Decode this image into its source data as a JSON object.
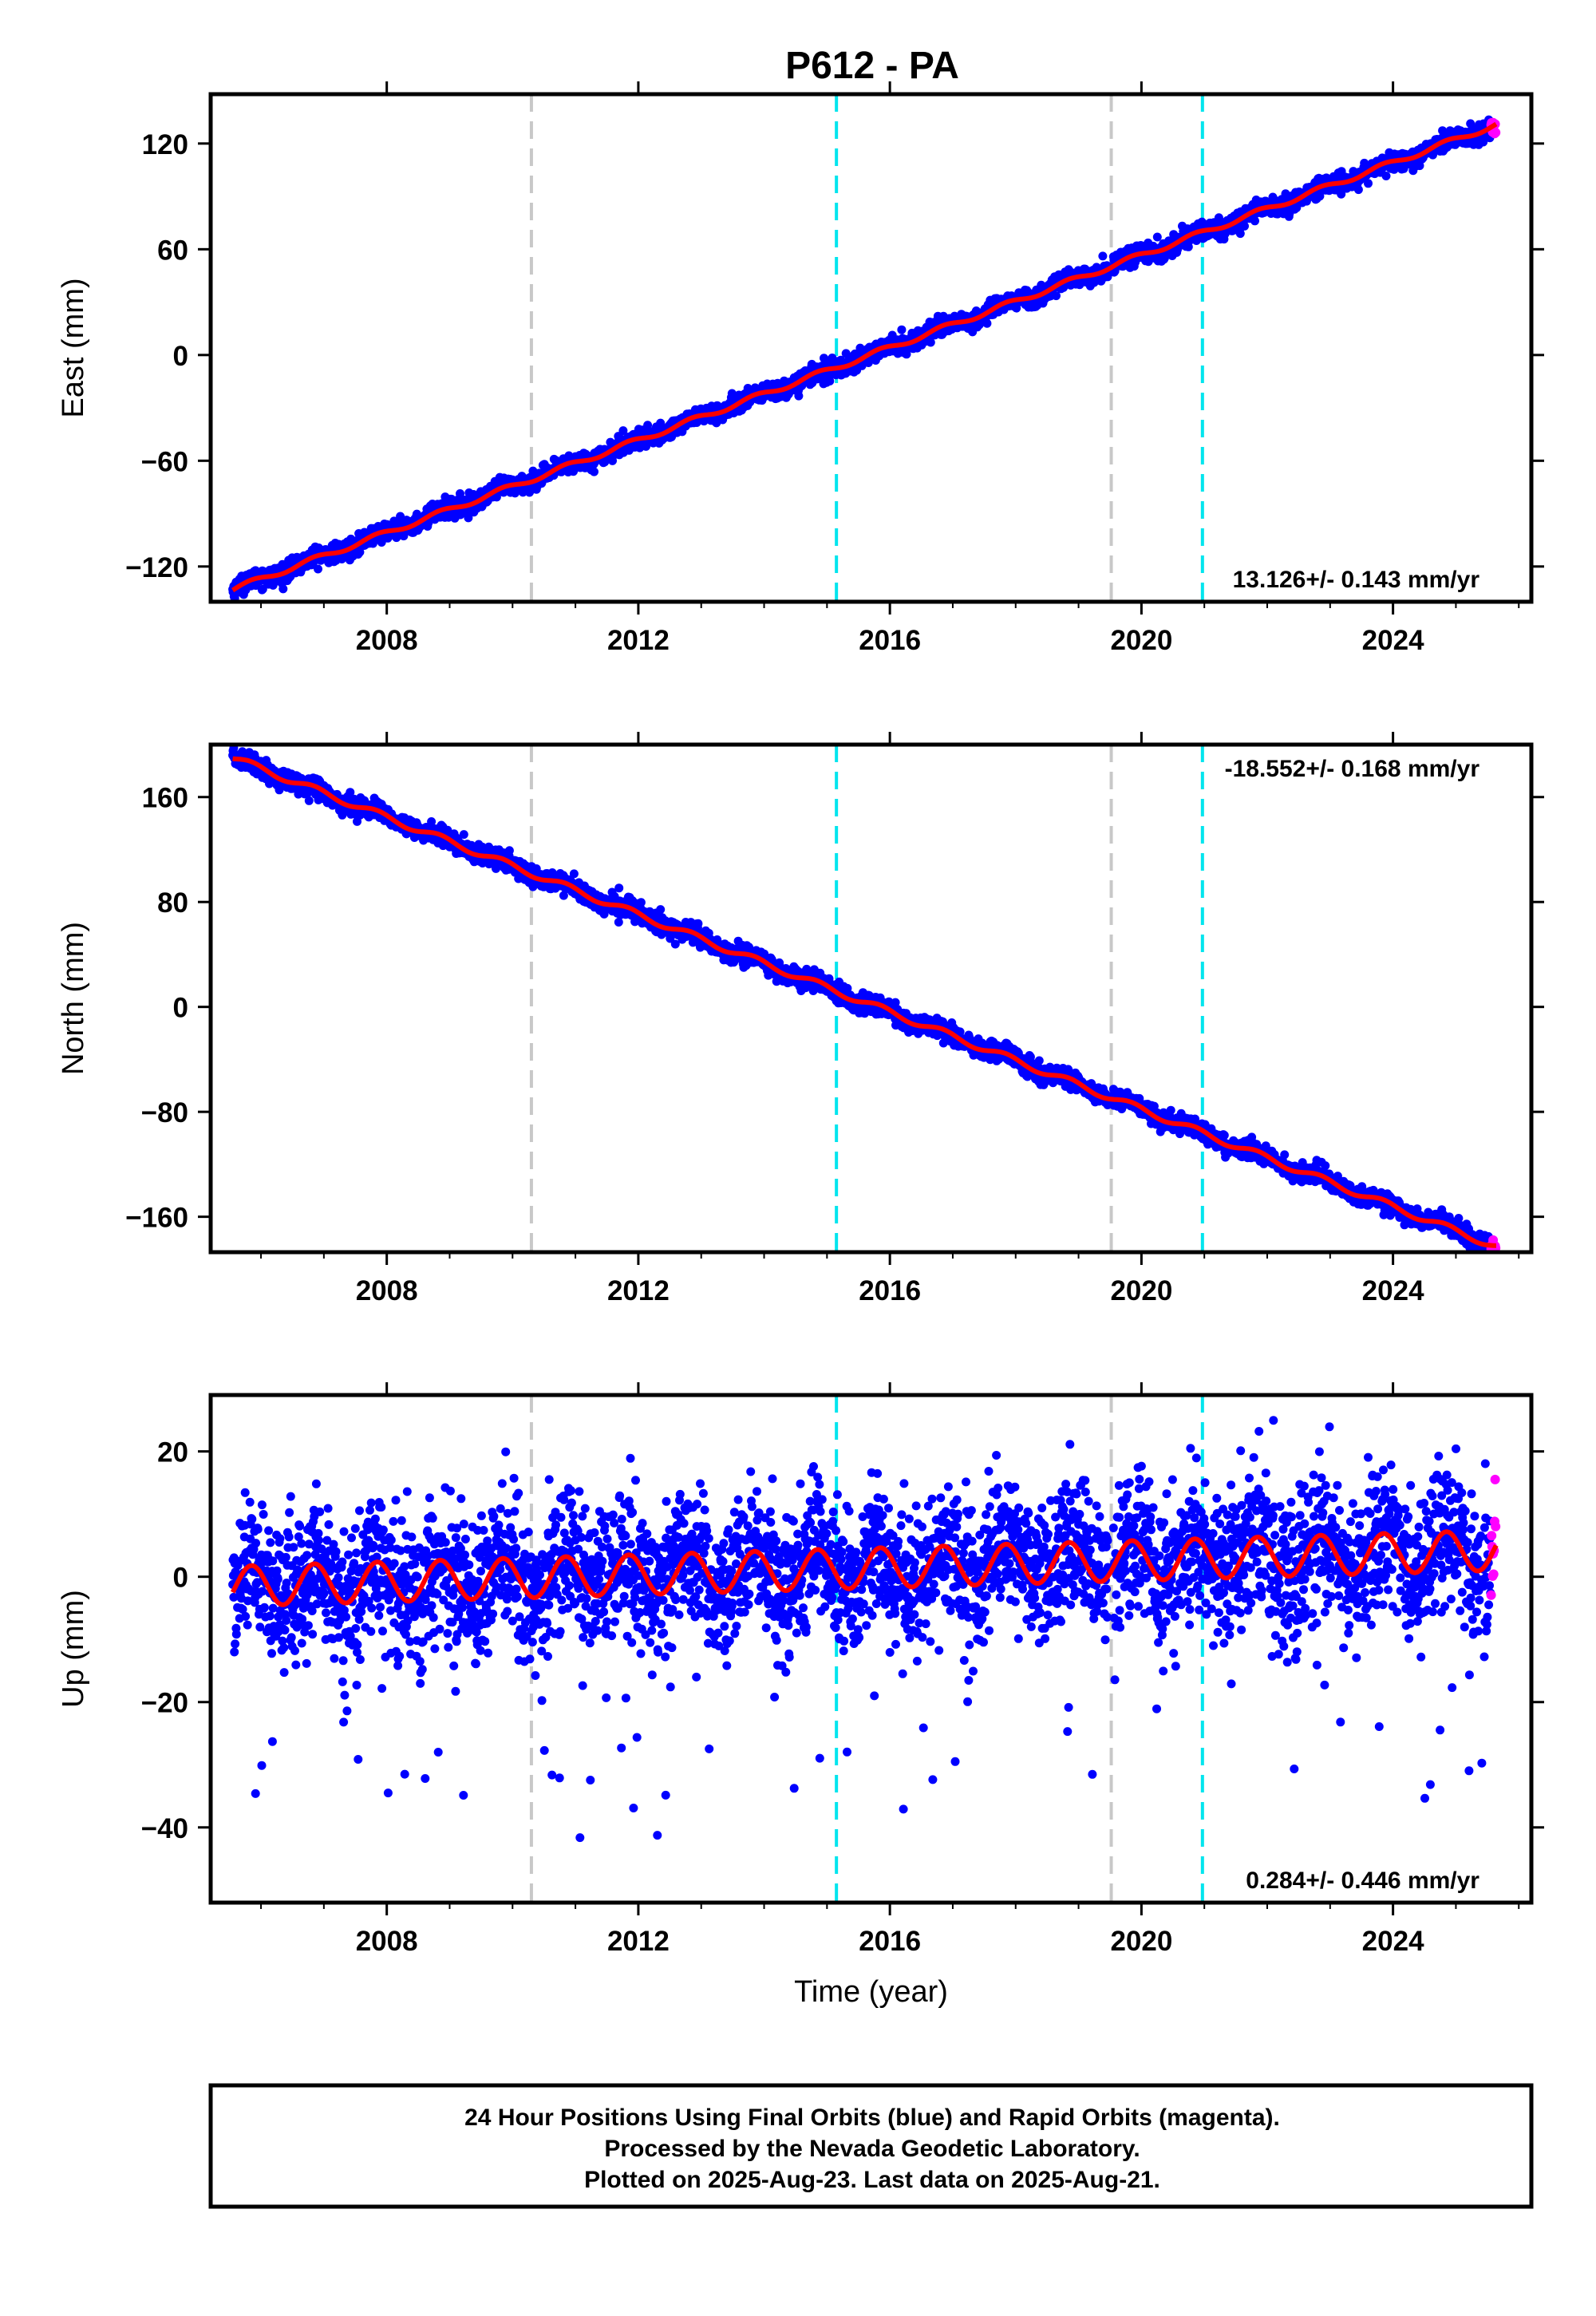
{
  "title": "P612 - PA",
  "footer": {
    "lines": [
      "24 Hour Positions Using Final Orbits (blue) and Rapid Orbits (magenta).",
      "Processed by the Nevada Geodetic Laboratory.",
      "Plotted on 2025-Aug-23. Last data on 2025-Aug-21."
    ]
  },
  "colors": {
    "final_orbits": "#0000ff",
    "rapid_orbits": "#ff00ff",
    "model_fit": "#ff0000",
    "equipment_change_line": "#c8c8c8",
    "earthquake_line": "#00e5ee"
  },
  "chart_data": [
    {
      "type": "scatter",
      "component": "east",
      "ylabel": "East (mm)",
      "xlabel": "",
      "xlim": [
        2005.2,
        2026.2
      ],
      "ylim": [
        -140,
        148
      ],
      "xticks": [
        2008,
        2012,
        2016,
        2020,
        2024
      ],
      "xtick_labels": [
        "2008",
        "2012",
        "2016",
        "2020",
        "2024"
      ],
      "yticks": [
        -120,
        -60,
        0,
        60,
        120
      ],
      "ytick_labels": [
        "−120",
        "−60",
        "0",
        "60",
        "120"
      ],
      "rate_label": "13.126+/- 0.143 mm/yr",
      "rate_position": "bottom-right",
      "trend": {
        "x0": 2005.55,
        "y0": -133,
        "slope": 13.126
      },
      "seasonal_amplitude": 1.5,
      "scatter": 2.5,
      "vertical_lines": [
        {
          "x": 2010.3,
          "kind": "equipment"
        },
        {
          "x": 2015.15,
          "kind": "earthquake"
        },
        {
          "x": 2019.52,
          "kind": "equipment"
        },
        {
          "x": 2020.97,
          "kind": "earthquake"
        }
      ]
    },
    {
      "type": "scatter",
      "component": "north",
      "ylabel": "North (mm)",
      "xlabel": "",
      "xlim": [
        2005.2,
        2026.2
      ],
      "ylim": [
        -187,
        200
      ],
      "xticks": [
        2008,
        2012,
        2016,
        2020,
        2024
      ],
      "xtick_labels": [
        "2008",
        "2012",
        "2016",
        "2020",
        "2024"
      ],
      "yticks": [
        -160,
        -80,
        0,
        80,
        160
      ],
      "ytick_labels": [
        "−160",
        "−80",
        "0",
        "80",
        "160"
      ],
      "rate_label": "-18.552+/- 0.168 mm/yr",
      "rate_position": "top-right",
      "trend": {
        "x0": 2005.55,
        "y0": 190,
        "slope": -18.552
      },
      "seasonal_amplitude": 2.5,
      "scatter": 3.5,
      "vertical_lines": [
        {
          "x": 2010.3,
          "kind": "equipment"
        },
        {
          "x": 2015.15,
          "kind": "earthquake"
        },
        {
          "x": 2019.52,
          "kind": "equipment"
        },
        {
          "x": 2020.97,
          "kind": "earthquake"
        }
      ]
    },
    {
      "type": "scatter",
      "component": "up",
      "ylabel": "Up (mm)",
      "xlabel": "Time (year)",
      "xlim": [
        2005.2,
        2026.2
      ],
      "ylim": [
        -52,
        29
      ],
      "xticks": [
        2008,
        2012,
        2016,
        2020,
        2024
      ],
      "xtick_labels": [
        "2008",
        "2012",
        "2016",
        "2020",
        "2024"
      ],
      "yticks": [
        -40,
        -20,
        0,
        20
      ],
      "ytick_labels": [
        "−40",
        "−20",
        "0",
        "20"
      ],
      "rate_label": "0.284+/- 0.446 mm/yr",
      "rate_position": "bottom-right",
      "trend": {
        "x0": 2005.55,
        "y0": -1.5,
        "slope": 0.284
      },
      "seasonal_amplitude": 3.2,
      "scatter": 5.5,
      "vertical_lines": [
        {
          "x": 2010.3,
          "kind": "equipment"
        },
        {
          "x": 2015.15,
          "kind": "earthquake"
        },
        {
          "x": 2019.52,
          "kind": "equipment"
        },
        {
          "x": 2020.97,
          "kind": "earthquake"
        }
      ]
    }
  ]
}
